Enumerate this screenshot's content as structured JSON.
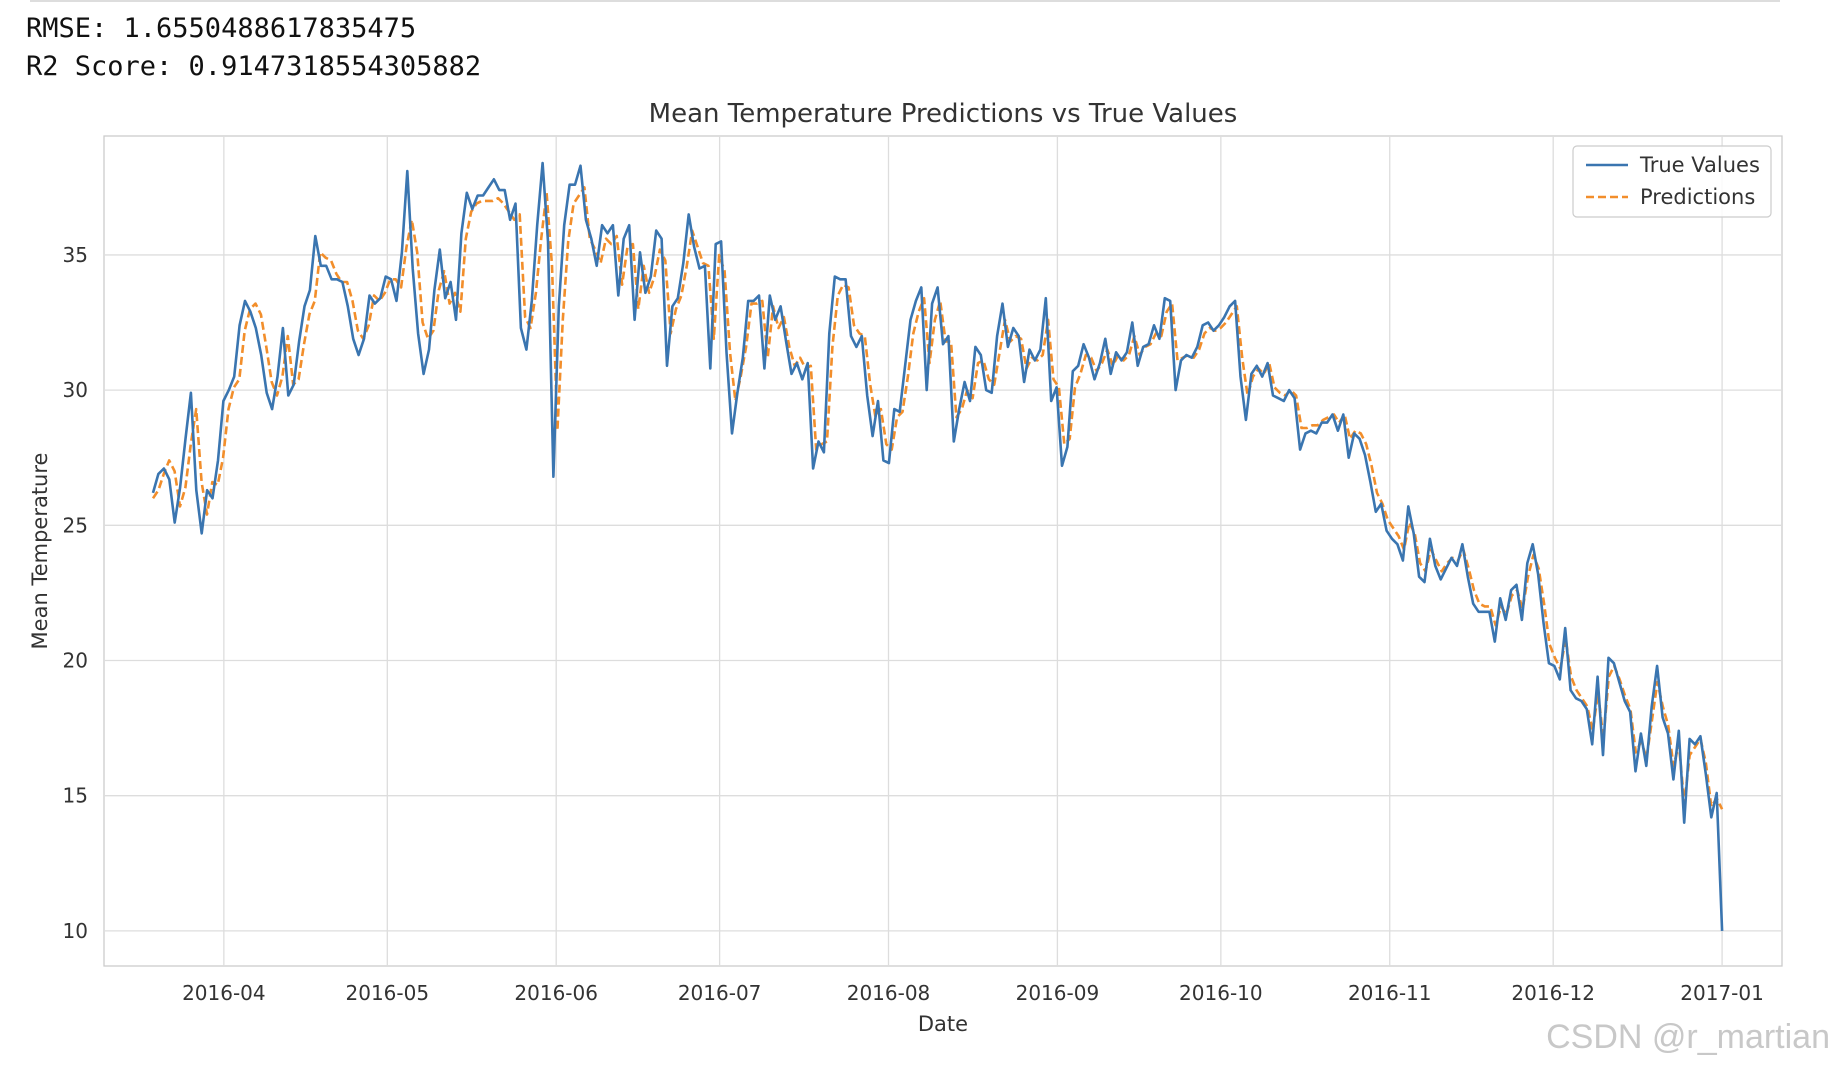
{
  "output": {
    "rmse_line": "RMSE: 1.6550488617835475",
    "r2_line": "R2 Score: 0.9147318554305882"
  },
  "watermark": "CSDN @r_martian",
  "chart_data": {
    "type": "line",
    "title": "Mean Temperature Predictions vs True Values",
    "xlabel": "Date",
    "ylabel": "Mean Temperature",
    "xlim": [
      "2016-03-10",
      "2017-01-12"
    ],
    "ylim": [
      8.7,
      39.4
    ],
    "x_ticks": [
      "2016-04",
      "2016-05",
      "2016-06",
      "2016-07",
      "2016-08",
      "2016-09",
      "2016-10",
      "2016-11",
      "2016-12",
      "2017-01"
    ],
    "x_tick_dates": [
      "2016-04-01",
      "2016-05-01",
      "2016-06-01",
      "2016-07-01",
      "2016-08-01",
      "2016-09-01",
      "2016-10-01",
      "2016-11-01",
      "2016-12-01",
      "2017-01-01"
    ],
    "y_ticks": [
      10,
      15,
      20,
      25,
      30,
      35
    ],
    "grid": true,
    "legend_position": "top-right",
    "x_start": "2016-03-19",
    "x_end": "2017-01-01",
    "series": [
      {
        "name": "True Values",
        "color": "#3a75b0",
        "style": "solid",
        "values": [
          26.2,
          26.9,
          27.1,
          26.7,
          25.1,
          26.4,
          28.2,
          29.9,
          26.3,
          24.7,
          26.3,
          26.0,
          27.4,
          29.6,
          30.0,
          30.5,
          32.4,
          33.3,
          32.9,
          32.3,
          31.3,
          29.9,
          29.3,
          30.5,
          32.3,
          29.8,
          30.2,
          31.8,
          33.1,
          33.7,
          35.7,
          34.6,
          34.6,
          34.1,
          34.1,
          34.0,
          33.1,
          31.9,
          31.3,
          31.9,
          33.5,
          33.2,
          33.4,
          34.2,
          34.1,
          33.3,
          35.1,
          38.1,
          34.5,
          32.1,
          30.6,
          31.5,
          33.7,
          35.2,
          33.4,
          34.0,
          32.6,
          35.8,
          37.3,
          36.7,
          37.2,
          37.2,
          37.5,
          37.8,
          37.4,
          37.4,
          36.3,
          36.9,
          32.3,
          31.5,
          33.3,
          36.1,
          38.4,
          35.5,
          26.8,
          33.1,
          36.1,
          37.6,
          37.6,
          38.3,
          36.3,
          35.6,
          34.6,
          36.1,
          35.8,
          36.1,
          33.5,
          35.6,
          36.1,
          32.6,
          35.1,
          33.6,
          34.2,
          35.9,
          35.6,
          30.9,
          33.1,
          33.4,
          34.7,
          36.5,
          35.3,
          34.5,
          34.6,
          30.8,
          35.4,
          35.5,
          31.4,
          28.4,
          29.9,
          31.2,
          33.3,
          33.3,
          33.5,
          30.8,
          33.5,
          32.6,
          33.1,
          31.8,
          30.6,
          31.0,
          30.4,
          31.0,
          27.1,
          28.1,
          27.7,
          32.1,
          34.2,
          34.1,
          34.1,
          32.0,
          31.6,
          32.0,
          29.8,
          28.3,
          29.6,
          27.4,
          27.3,
          29.3,
          29.2,
          30.9,
          32.6,
          33.3,
          33.8,
          30.0,
          33.2,
          33.8,
          31.7,
          32.0,
          28.1,
          29.3,
          30.3,
          29.6,
          31.6,
          31.3,
          30.0,
          29.9,
          32.0,
          33.2,
          31.6,
          32.3,
          32.0,
          30.3,
          31.5,
          31.1,
          31.5,
          33.4,
          29.6,
          30.1,
          27.2,
          27.9,
          30.7,
          30.9,
          31.7,
          31.2,
          30.4,
          31.0,
          31.9,
          30.6,
          31.4,
          31.1,
          31.4,
          32.5,
          30.9,
          31.6,
          31.7,
          32.4,
          31.9,
          33.4,
          33.3,
          30.0,
          31.1,
          31.3,
          31.2,
          31.6,
          32.4,
          32.5,
          32.2,
          32.4,
          32.7,
          33.1,
          33.3,
          30.5,
          28.9,
          30.6,
          30.9,
          30.5,
          31.0,
          29.8,
          29.7,
          29.6,
          30.0,
          29.7,
          27.8,
          28.4,
          28.5,
          28.4,
          28.8,
          28.8,
          29.1,
          28.5,
          29.1,
          27.5,
          28.4,
          28.2,
          27.6,
          26.6,
          25.5,
          25.8,
          24.8,
          24.5,
          24.3,
          23.7,
          25.7,
          24.7,
          23.1,
          22.9,
          24.5,
          23.5,
          23.0,
          23.4,
          23.8,
          23.5,
          24.3,
          23.1,
          22.1,
          21.8,
          21.8,
          21.8,
          20.7,
          22.3,
          21.5,
          22.6,
          22.8,
          21.5,
          23.6,
          24.3,
          23.2,
          21.4,
          19.9,
          19.8,
          19.3,
          21.2,
          18.9,
          18.6,
          18.5,
          18.2,
          16.9,
          19.4,
          16.5,
          20.1,
          19.9,
          19.2,
          18.5,
          18.1,
          15.9,
          17.3,
          16.1,
          18.3,
          19.8,
          17.9,
          17.3,
          15.6,
          17.4,
          14.0,
          17.1,
          16.9,
          17.2,
          15.8,
          14.2,
          15.1,
          10.0
        ]
      },
      {
        "name": "Predictions",
        "color": "#f28e2b",
        "style": "dashed",
        "values": [
          26.0,
          26.3,
          26.9,
          27.4,
          27.0,
          25.7,
          26.4,
          28.0,
          29.3,
          26.6,
          25.4,
          26.6,
          26.5,
          27.5,
          29.3,
          30.1,
          30.4,
          32.2,
          33.0,
          33.2,
          32.8,
          31.6,
          30.3,
          29.8,
          30.5,
          32.0,
          30.2,
          30.4,
          31.7,
          32.8,
          33.3,
          35.1,
          34.9,
          34.8,
          34.3,
          34.0,
          34.0,
          33.3,
          32.2,
          31.9,
          32.4,
          33.5,
          33.3,
          33.6,
          34.1,
          34.1,
          33.8,
          35.3,
          36.3,
          35.1,
          32.5,
          31.9,
          32.2,
          33.7,
          34.4,
          33.2,
          33.6,
          32.9,
          35.6,
          36.6,
          36.9,
          37.0,
          37.0,
          37.0,
          37.1,
          36.9,
          36.6,
          36.3,
          36.5,
          32.7,
          32.3,
          33.6,
          35.6,
          37.3,
          34.6,
          28.5,
          32.6,
          35.5,
          36.9,
          37.2,
          37.5,
          35.6,
          35.2,
          34.7,
          35.6,
          35.4,
          35.7,
          33.9,
          35.3,
          35.4,
          33.0,
          34.6,
          33.6,
          34.2,
          35.2,
          34.8,
          32.1,
          33.0,
          33.5,
          34.6,
          35.9,
          35.3,
          34.7,
          34.6,
          31.9,
          35.0,
          34.4,
          31.4,
          29.6,
          30.5,
          31.6,
          33.2,
          33.2,
          33.3,
          31.2,
          33.1,
          32.3,
          32.7,
          31.6,
          30.9,
          31.2,
          30.8,
          30.9,
          27.8,
          28.0,
          28.1,
          31.6,
          33.5,
          33.9,
          33.8,
          32.4,
          32.1,
          32.0,
          30.2,
          29.0,
          29.3,
          28.0,
          27.8,
          29.0,
          29.2,
          30.5,
          32.1,
          32.9,
          33.4,
          31.0,
          32.6,
          33.3,
          31.8,
          31.8,
          29.0,
          29.3,
          30.0,
          29.7,
          31.0,
          31.1,
          30.4,
          30.2,
          31.4,
          32.6,
          31.8,
          32.0,
          31.9,
          30.8,
          31.2,
          31.1,
          31.3,
          32.6,
          30.4,
          30.1,
          28.0,
          28.2,
          30.1,
          30.6,
          31.3,
          31.2,
          30.7,
          31.0,
          31.5,
          30.9,
          31.3,
          31.1,
          31.3,
          32.0,
          31.3,
          31.6,
          31.7,
          32.1,
          32.0,
          32.9,
          33.2,
          31.1,
          31.2,
          31.3,
          31.2,
          31.5,
          32.1,
          32.3,
          32.2,
          32.3,
          32.5,
          32.8,
          33.1,
          31.2,
          29.8,
          30.5,
          30.8,
          30.6,
          31.0,
          30.1,
          29.9,
          29.8,
          30.0,
          29.8,
          28.6,
          28.6,
          28.7,
          28.7,
          28.9,
          29.0,
          29.1,
          28.8,
          29.1,
          28.2,
          28.5,
          28.4,
          28.0,
          27.2,
          26.2,
          25.8,
          25.2,
          24.9,
          24.6,
          24.1,
          25.1,
          24.7,
          23.6,
          23.3,
          24.1,
          23.7,
          23.3,
          23.6,
          23.8,
          23.7,
          24.1,
          23.4,
          22.6,
          22.1,
          22.0,
          22.0,
          21.3,
          22.0,
          21.7,
          22.4,
          22.6,
          21.9,
          23.1,
          23.9,
          23.4,
          22.1,
          20.6,
          20.1,
          19.7,
          20.8,
          19.4,
          18.9,
          18.6,
          18.3,
          17.4,
          18.8,
          17.1,
          19.4,
          19.8,
          19.3,
          18.7,
          18.2,
          16.6,
          17.0,
          16.4,
          17.8,
          19.2,
          18.3,
          17.6,
          16.1,
          16.9,
          14.7,
          16.5,
          16.8,
          17.1,
          16.2,
          14.6,
          14.9,
          14.5
        ]
      }
    ]
  }
}
